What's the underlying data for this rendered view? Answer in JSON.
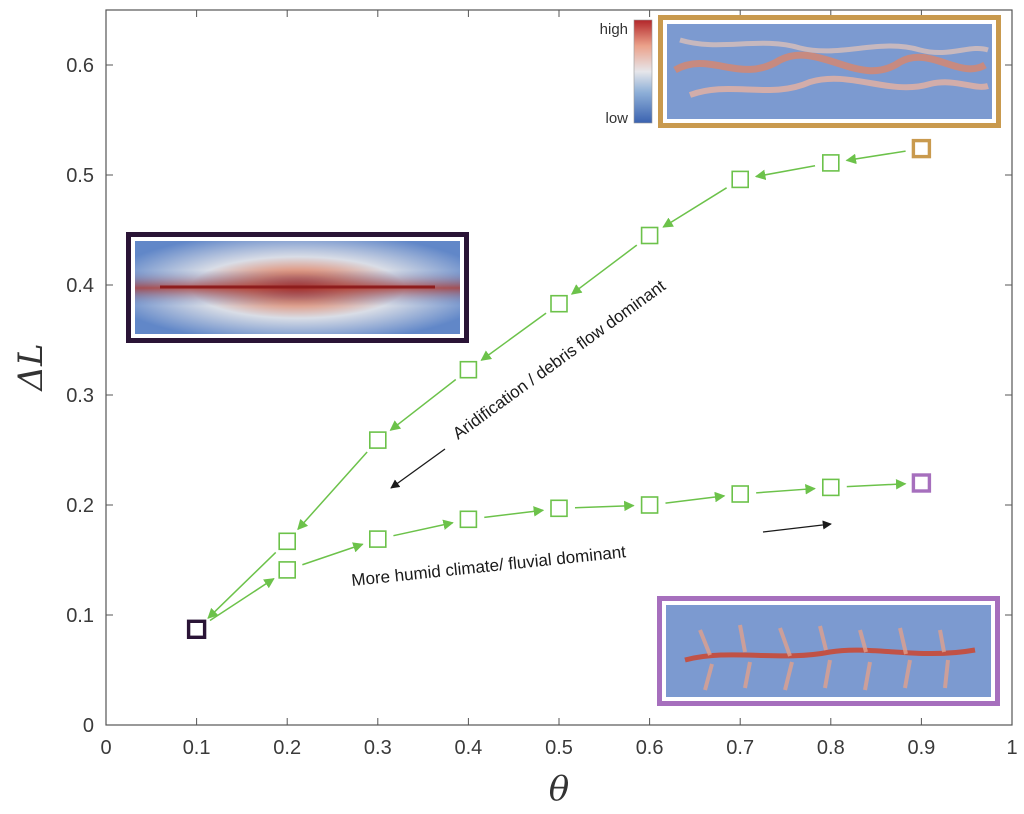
{
  "chart_data": {
    "type": "scatter",
    "xlabel": "θ",
    "ylabel": "ΔL",
    "xlim": [
      0,
      1
    ],
    "ylim": [
      0,
      0.65
    ],
    "x_ticks": [
      "0",
      "0.1",
      "0.2",
      "0.3",
      "0.4",
      "0.5",
      "0.6",
      "0.7",
      "0.8",
      "0.9",
      "1"
    ],
    "y_ticks": [
      "0",
      "0.1",
      "0.2",
      "0.3",
      "0.4",
      "0.5",
      "0.6"
    ],
    "grid": false,
    "series": [
      {
        "x": [
          0.2,
          0.3,
          0.4,
          0.5,
          0.6,
          0.7,
          0.8
        ],
        "y": [
          0.167,
          0.259,
          0.323,
          0.383,
          0.445,
          0.496,
          0.511
        ],
        "color": "#6cc24a"
      },
      {
        "x": [
          0.2,
          0.3,
          0.4,
          0.5,
          0.6,
          0.7,
          0.8
        ],
        "y": [
          0.141,
          0.169,
          0.187,
          0.197,
          0.2,
          0.21,
          0.216
        ],
        "color": "#6cc24a"
      }
    ],
    "endpoints": [
      {
        "x": 0.1,
        "y": 0.087,
        "color": "#2a1436"
      },
      {
        "x": 0.9,
        "y": 0.524,
        "color": "#c99a4e"
      },
      {
        "x": 0.9,
        "y": 0.22,
        "color": "#a66fbd"
      }
    ],
    "annotations": [
      "Aridification / debris flow dominant",
      "More humid climate/ fluvial dominant"
    ],
    "colorbar": {
      "high": "high",
      "low": "low"
    },
    "arrow_color": "#6cc24a"
  }
}
